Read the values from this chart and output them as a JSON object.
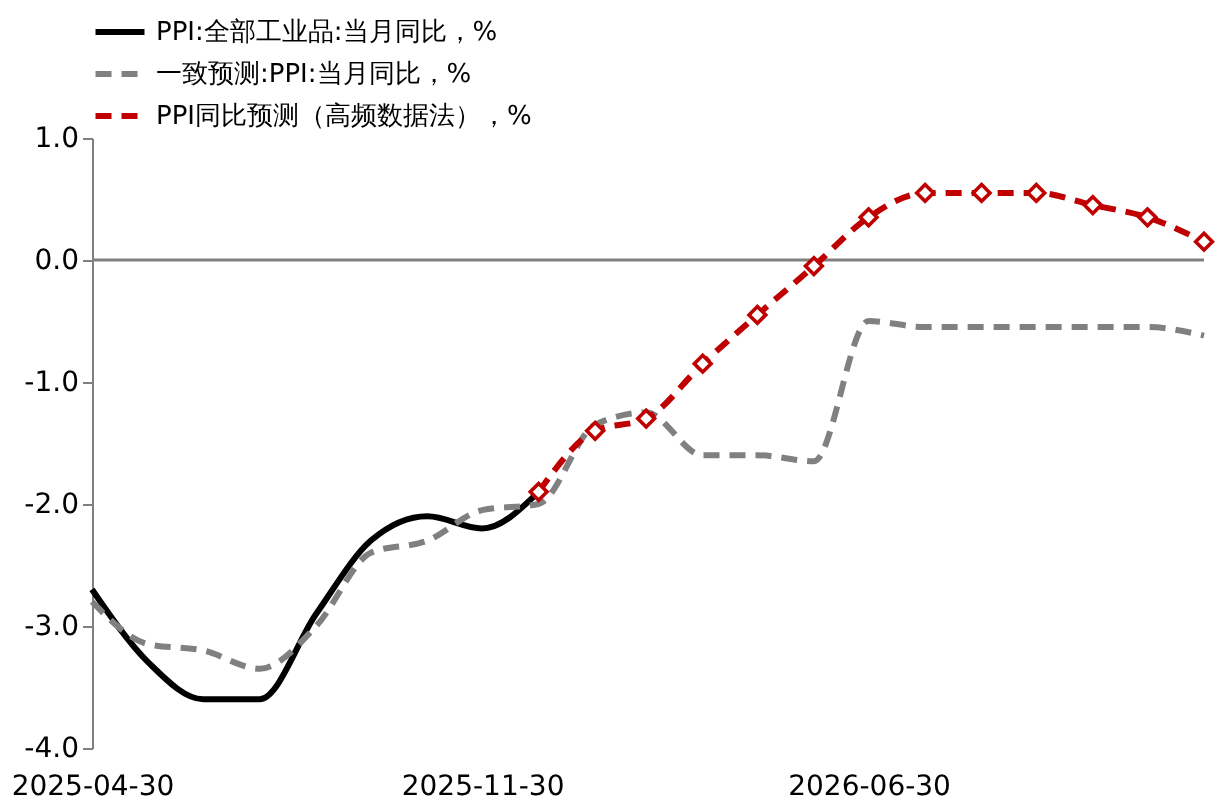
{
  "chart_data": {
    "type": "line",
    "legend": "top",
    "grid": false,
    "ylim": [
      -4,
      1
    ],
    "yticks": [
      {
        "value": 1,
        "label": "1.0"
      },
      {
        "value": 0,
        "label": "0.0"
      },
      {
        "value": -1,
        "label": "-1.0"
      },
      {
        "value": -2,
        "label": "-2.0"
      },
      {
        "value": -3,
        "label": "-3.0"
      },
      {
        "value": -4,
        "label": "-4.0"
      }
    ],
    "xlim": [
      "2025-04-30",
      "2026-12-31"
    ],
    "xticks": [
      "2025-04-30",
      "2025-11-30",
      "2026-06-30"
    ],
    "ref_lines": [
      {
        "axis": "y",
        "value": 0,
        "color": "#808080"
      }
    ],
    "series": [
      {
        "name": "PPI:全部工业品:当月同比，%",
        "color": "#000000",
        "line_style": "solid",
        "marker": "none",
        "x": [
          "2025-04-30",
          "2025-05-31",
          "2025-06-30",
          "2025-07-31",
          "2025-08-31",
          "2025-09-30",
          "2025-10-31",
          "2025-11-30",
          "2025-12-31"
        ],
        "values": [
          -2.7,
          -3.3,
          -3.6,
          -3.6,
          -2.9,
          -2.3,
          -2.1,
          -2.2,
          -1.9
        ]
      },
      {
        "name": "一致预测:PPI:当月同比，%",
        "color": "#808080",
        "line_style": "dashed",
        "marker": "none",
        "x": [
          "2025-04-30",
          "2025-05-31",
          "2025-06-30",
          "2025-07-31",
          "2025-08-31",
          "2025-09-30",
          "2025-10-31",
          "2025-11-30",
          "2025-12-31",
          "2026-01-31",
          "2026-02-28",
          "2026-03-31",
          "2026-04-30",
          "2026-05-31",
          "2026-06-30",
          "2026-07-31",
          "2026-08-31",
          "2026-09-30",
          "2026-10-31",
          "2026-11-30",
          "2026-12-31"
        ],
        "values": [
          -2.8,
          -3.15,
          -3.2,
          -3.35,
          -3.0,
          -2.4,
          -2.3,
          -2.05,
          -2.0,
          -1.35,
          -1.25,
          -1.6,
          -1.6,
          -1.65,
          -0.5,
          -0.55,
          -0.55,
          -0.55,
          -0.55,
          -0.55,
          -0.62
        ]
      },
      {
        "name": "PPI同比预测（高频数据法），%",
        "color": "#c00000",
        "line_style": "dashed",
        "marker": "diamond",
        "x": [
          "2025-12-31",
          "2026-01-31",
          "2026-02-28",
          "2026-03-31",
          "2026-04-30",
          "2026-05-31",
          "2026-06-30",
          "2026-07-31",
          "2026-08-31",
          "2026-09-30",
          "2026-10-31",
          "2026-11-30",
          "2026-12-31"
        ],
        "values": [
          -1.9,
          -1.4,
          -1.3,
          -0.85,
          -0.45,
          -0.05,
          0.35,
          0.55,
          0.55,
          0.55,
          0.45,
          0.35,
          0.15
        ]
      }
    ]
  }
}
